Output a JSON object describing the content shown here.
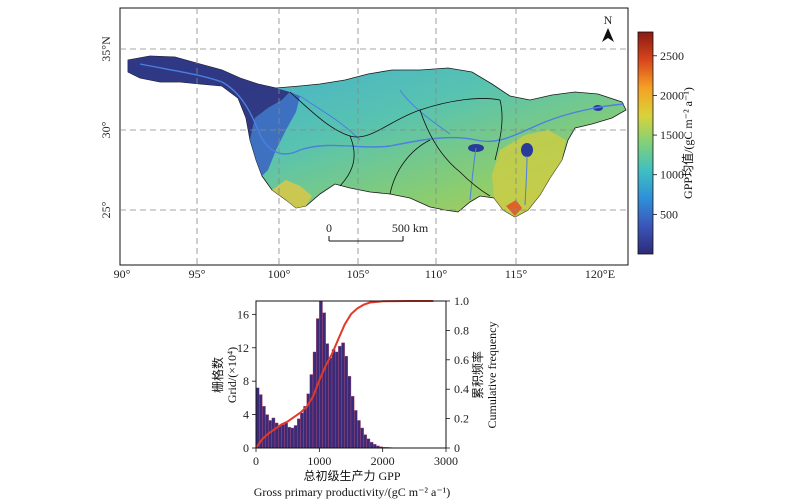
{
  "map": {
    "x_ticks": [
      "90°",
      "95°",
      "100°",
      "105°",
      "110°",
      "115°",
      "120°E"
    ],
    "y_ticks": [
      "35°N",
      "30°",
      "25°"
    ],
    "north_label": "N",
    "scale_start": "0",
    "scale_end": "500 km",
    "colorbar": {
      "title": "GPP均值/(gC m⁻² a⁻¹)",
      "ticks": [
        "500",
        "1000",
        "1500",
        "2000",
        "2500"
      ],
      "colors": [
        "#2d2a78",
        "#3b55b8",
        "#2f8fd8",
        "#3fbfc2",
        "#7fd17a",
        "#d9d23a",
        "#f5a024",
        "#d8451c",
        "#8a1a12"
      ]
    }
  },
  "chart_data": {
    "type": "bar",
    "xlabel_cn": "总初级生产力 GPP",
    "xlabel": "Gross primary productivity/(gC m⁻² a⁻¹)",
    "ylabel_cn": "栅格数",
    "ylabel": "Grid/(×10⁴)",
    "y2label_cn": "累积频率",
    "y2label": "Cumulative frequency",
    "xlim": [
      0,
      3000
    ],
    "ylim": [
      0,
      17.6
    ],
    "y2lim": [
      0,
      1.0
    ],
    "x_ticks": [
      0,
      1000,
      2000,
      3000
    ],
    "y_ticks": [
      0,
      4,
      8,
      12,
      16
    ],
    "y2_ticks": [
      "0",
      "0.2",
      "0.4",
      "0.6",
      "0.8",
      "1.0"
    ],
    "bar_color": "#3a2a78",
    "line_color": "#e23a2a",
    "bins": [
      [
        0,
        7.2
      ],
      [
        50,
        6.4
      ],
      [
        100,
        5.0
      ],
      [
        150,
        4.0
      ],
      [
        200,
        3.3
      ],
      [
        250,
        3.6
      ],
      [
        300,
        3.0
      ],
      [
        350,
        2.6
      ],
      [
        400,
        2.8
      ],
      [
        450,
        3.0
      ],
      [
        500,
        2.5
      ],
      [
        550,
        2.4
      ],
      [
        600,
        2.7
      ],
      [
        650,
        3.5
      ],
      [
        700,
        4.2
      ],
      [
        750,
        5.0
      ],
      [
        800,
        6.5
      ],
      [
        850,
        8.8
      ],
      [
        900,
        11.5
      ],
      [
        950,
        15.5
      ],
      [
        1000,
        17.8
      ],
      [
        1050,
        16.2
      ],
      [
        1100,
        12.5
      ],
      [
        1150,
        10.8
      ],
      [
        1200,
        11.8
      ],
      [
        1250,
        11.5
      ],
      [
        1300,
        12.2
      ],
      [
        1350,
        12.6
      ],
      [
        1400,
        11.0
      ],
      [
        1450,
        8.6
      ],
      [
        1500,
        6.2
      ],
      [
        1550,
        4.5
      ],
      [
        1600,
        3.3
      ],
      [
        1650,
        2.4
      ],
      [
        1700,
        1.6
      ],
      [
        1750,
        1.1
      ],
      [
        1800,
        0.7
      ],
      [
        1850,
        0.45
      ],
      [
        1900,
        0.25
      ],
      [
        1950,
        0.15
      ],
      [
        2000,
        0.1
      ],
      [
        2050,
        0.08
      ],
      [
        2100,
        0.06
      ],
      [
        2150,
        0.04
      ],
      [
        2200,
        0.03
      ],
      [
        2250,
        0.02
      ]
    ],
    "cumulative": [
      [
        0,
        0.0
      ],
      [
        100,
        0.06
      ],
      [
        200,
        0.1
      ],
      [
        300,
        0.13
      ],
      [
        400,
        0.16
      ],
      [
        500,
        0.18
      ],
      [
        600,
        0.21
      ],
      [
        700,
        0.24
      ],
      [
        800,
        0.28
      ],
      [
        900,
        0.35
      ],
      [
        1000,
        0.46
      ],
      [
        1100,
        0.56
      ],
      [
        1200,
        0.64
      ],
      [
        1300,
        0.74
      ],
      [
        1400,
        0.84
      ],
      [
        1500,
        0.91
      ],
      [
        1600,
        0.95
      ],
      [
        1700,
        0.975
      ],
      [
        1800,
        0.99
      ],
      [
        2000,
        0.998
      ],
      [
        2400,
        1.0
      ],
      [
        2800,
        1.0
      ]
    ]
  }
}
